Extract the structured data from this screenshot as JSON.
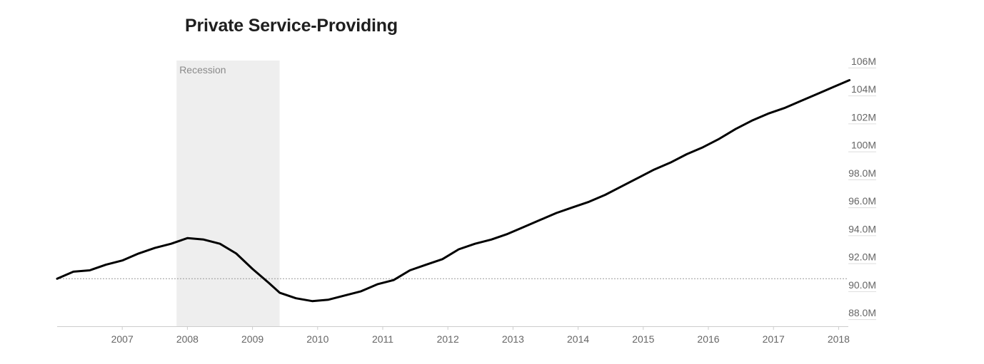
{
  "chart_data": {
    "type": "line",
    "title": "Private Service-Providing",
    "xlabel": "",
    "ylabel": "",
    "x_ticks": [
      "2007",
      "2008",
      "2009",
      "2010",
      "2011",
      "2012",
      "2013",
      "2014",
      "2015",
      "2016",
      "2017",
      "2018"
    ],
    "y_ticks": [
      {
        "value": 88,
        "label": "88.0M"
      },
      {
        "value": 90,
        "label": "90.0M"
      },
      {
        "value": 92,
        "label": "92.0M"
      },
      {
        "value": 94,
        "label": "94.0M"
      },
      {
        "value": 96,
        "label": "96.0M"
      },
      {
        "value": 98,
        "label": "98.0M"
      },
      {
        "value": 100,
        "label": "100M"
      },
      {
        "value": 102,
        "label": "102M"
      },
      {
        "value": 104,
        "label": "104M"
      },
      {
        "value": 106,
        "label": "106M"
      }
    ],
    "xlim": [
      "2006-01",
      "2018-03"
    ],
    "ylim": [
      87.5,
      106.5
    ],
    "y_unit": "millions",
    "reference_line": {
      "value": 90.9,
      "style": "dotted",
      "color": "#999999"
    },
    "shaded_region": {
      "label": "Recession",
      "start": "2007-12",
      "end": "2009-06",
      "color": "#eeeeee"
    },
    "line_color": "#000000",
    "grid": false,
    "series": [
      {
        "values": [
          [
            "2006-01",
            90.9
          ],
          [
            "2006-04",
            91.4
          ],
          [
            "2006-07",
            91.5
          ],
          [
            "2006-10",
            91.9
          ],
          [
            "2007-01",
            92.2
          ],
          [
            "2007-04",
            92.7
          ],
          [
            "2007-07",
            93.1
          ],
          [
            "2007-10",
            93.4
          ],
          [
            "2008-01",
            93.8
          ],
          [
            "2008-04",
            93.7
          ],
          [
            "2008-07",
            93.4
          ],
          [
            "2008-10",
            92.7
          ],
          [
            "2009-01",
            91.6
          ],
          [
            "2009-04",
            90.6
          ],
          [
            "2009-06",
            89.9
          ],
          [
            "2009-09",
            89.5
          ],
          [
            "2009-12",
            89.3
          ],
          [
            "2010-03",
            89.4
          ],
          [
            "2010-06",
            89.7
          ],
          [
            "2010-09",
            90.0
          ],
          [
            "2010-12",
            90.5
          ],
          [
            "2011-03",
            90.8
          ],
          [
            "2011-06",
            91.5
          ],
          [
            "2011-09",
            91.9
          ],
          [
            "2011-12",
            92.3
          ],
          [
            "2012-03",
            93.0
          ],
          [
            "2012-06",
            93.4
          ],
          [
            "2012-09",
            93.7
          ],
          [
            "2012-12",
            94.1
          ],
          [
            "2013-03",
            94.6
          ],
          [
            "2013-06",
            95.1
          ],
          [
            "2013-09",
            95.6
          ],
          [
            "2013-12",
            96.0
          ],
          [
            "2014-03",
            96.4
          ],
          [
            "2014-06",
            96.9
          ],
          [
            "2014-09",
            97.5
          ],
          [
            "2014-12",
            98.1
          ],
          [
            "2015-03",
            98.7
          ],
          [
            "2015-06",
            99.2
          ],
          [
            "2015-09",
            99.8
          ],
          [
            "2015-12",
            100.3
          ],
          [
            "2016-03",
            100.9
          ],
          [
            "2016-06",
            101.6
          ],
          [
            "2016-09",
            102.2
          ],
          [
            "2016-12",
            102.7
          ],
          [
            "2017-03",
            103.1
          ],
          [
            "2017-06",
            103.6
          ],
          [
            "2017-09",
            104.1
          ],
          [
            "2017-12",
            104.6
          ],
          [
            "2018-03",
            105.1
          ]
        ]
      }
    ]
  }
}
